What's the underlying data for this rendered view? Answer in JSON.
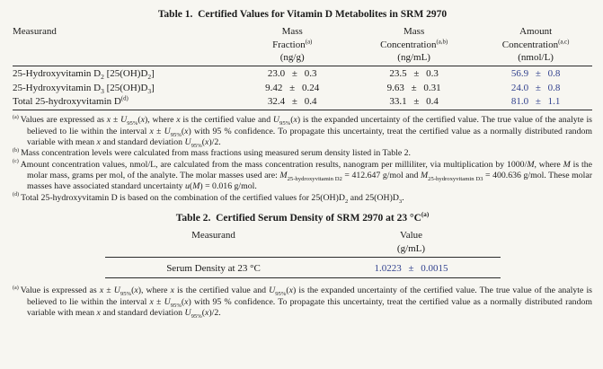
{
  "colors": {
    "background": "#f7f6f1",
    "text": "#1b1b1b",
    "rule": "#2b2b2b",
    "value_accent": "#31418e"
  },
  "table1": {
    "title": "Table 1.  Certified Values for Vitamin D Metabolites in SRM 2970",
    "headers": [
      {
        "lines": [
          [
            {
              "t": "Measurand"
            }
          ]
        ]
      },
      {
        "lines": [
          [
            {
              "t": "Mass"
            }
          ],
          [
            {
              "t": "Fraction"
            },
            {
              "t": "(a)",
              "s": "sup"
            }
          ],
          [
            {
              "t": "(ng/g)"
            }
          ]
        ]
      },
      {
        "lines": [
          [
            {
              "t": "Mass"
            }
          ],
          [
            {
              "t": "Concentration"
            },
            {
              "t": "(a,b)",
              "s": "sup"
            }
          ],
          [
            {
              "t": "(ng/mL)"
            }
          ]
        ]
      },
      {
        "lines": [
          [
            {
              "t": "Amount"
            }
          ],
          [
            {
              "t": "Concentration"
            },
            {
              "t": "(a,c)",
              "s": "sup"
            }
          ],
          [
            {
              "t": "(nmol/L)"
            }
          ]
        ]
      }
    ],
    "rows": [
      {
        "measurand": [
          {
            "t": "25-Hydroxyvitamin D"
          },
          {
            "t": "2",
            "s": "sub"
          },
          {
            "t": " [25(OH)D"
          },
          {
            "t": "2",
            "s": "sub"
          },
          {
            "t": "]"
          }
        ],
        "values": [
          "23.0 ± 0.3",
          "23.5 ± 0.3",
          "56.9 ± 0.8"
        ]
      },
      {
        "measurand": [
          {
            "t": "25-Hydroxyvitamin D"
          },
          {
            "t": "3",
            "s": "sub"
          },
          {
            "t": " [25(OH)D"
          },
          {
            "t": "3",
            "s": "sub"
          },
          {
            "t": "]"
          }
        ],
        "values": [
          "9.42 ± 0.24",
          "9.63 ± 0.31",
          "24.0 ± 0.8"
        ]
      },
      {
        "measurand": [
          {
            "t": "Total 25-hydroxyvitamin D"
          },
          {
            "t": "(d)",
            "s": "sup"
          }
        ],
        "values": [
          "32.4 ± 0.4",
          "33.1 ± 0.4",
          "81.0 ± 1.1"
        ]
      }
    ],
    "footnotes": [
      {
        "marker": "(a)",
        "segments": [
          {
            "t": "Values are expressed as "
          },
          {
            "t": "x",
            "s": "i"
          },
          {
            "t": " ± "
          },
          {
            "t": "U",
            "s": "i"
          },
          {
            "t": "95%",
            "s": "sub"
          },
          {
            "t": "("
          },
          {
            "t": "x",
            "s": "i"
          },
          {
            "t": "), where "
          },
          {
            "t": "x",
            "s": "i"
          },
          {
            "t": " is the certified value and "
          },
          {
            "t": "U",
            "s": "i"
          },
          {
            "t": "95%",
            "s": "sub"
          },
          {
            "t": "("
          },
          {
            "t": "x",
            "s": "i"
          },
          {
            "t": ") is the expanded uncertainty of the certified value.  The true value of the analyte is believed to lie within the interval "
          },
          {
            "t": "x",
            "s": "i"
          },
          {
            "t": " ± "
          },
          {
            "t": "U",
            "s": "i"
          },
          {
            "t": "95%",
            "s": "sub"
          },
          {
            "t": "("
          },
          {
            "t": "x",
            "s": "i"
          },
          {
            "t": ") with 95 % confidence.  To propagate this uncertainty, treat the certified value as a normally distributed random variable with mean "
          },
          {
            "t": "x",
            "s": "i"
          },
          {
            "t": " and standard deviation "
          },
          {
            "t": "U",
            "s": "i"
          },
          {
            "t": "95%",
            "s": "sub"
          },
          {
            "t": "("
          },
          {
            "t": "x",
            "s": "i"
          },
          {
            "t": ")/2."
          }
        ]
      },
      {
        "marker": "(b)",
        "segments": [
          {
            "t": "Mass concentration levels were calculated from mass fractions using measured serum density listed in Table 2."
          }
        ]
      },
      {
        "marker": "(c)",
        "segments": [
          {
            "t": "Amount concentration values, nmol/L, are calculated from the mass concentration results, nanogram per milliliter, via multiplication by 1000/"
          },
          {
            "t": "M",
            "s": "i"
          },
          {
            "t": ", where "
          },
          {
            "t": "M",
            "s": "i"
          },
          {
            "t": " is the molar mass, grams per mol, of the analyte.  The molar masses used are: "
          },
          {
            "t": "M",
            "s": "i"
          },
          {
            "t": "25-hydroxyvitamin D2",
            "s": "sub"
          },
          {
            "t": " = 412.647 g/mol and "
          },
          {
            "t": "M",
            "s": "i"
          },
          {
            "t": "25-hydroxyvitamin D3",
            "s": "sub"
          },
          {
            "t": " = 400.636 g/mol.  These molar masses have associated standard uncertainty "
          },
          {
            "t": "u",
            "s": "i"
          },
          {
            "t": "("
          },
          {
            "t": "M",
            "s": "i"
          },
          {
            "t": ") = 0.016 g/mol."
          }
        ]
      },
      {
        "marker": "(d)",
        "segments": [
          {
            "t": "Total 25-hydroxyvitamin D is based on the combination of the certified values for 25(OH)D"
          },
          {
            "t": "2",
            "s": "sub"
          },
          {
            "t": " and 25(OH)D"
          },
          {
            "t": "3",
            "s": "sub"
          },
          {
            "t": "."
          }
        ]
      }
    ]
  },
  "table2": {
    "title": [
      {
        "t": "Table 2.  Certified Serum Density of SRM 2970 at 23 °C"
      },
      {
        "t": "(a)",
        "s": "sup"
      }
    ],
    "headers": [
      {
        "lines": [
          [
            {
              "t": "Measurand"
            }
          ]
        ]
      },
      {
        "lines": [
          [
            {
              "t": "Value"
            }
          ],
          [
            {
              "t": "(g/mL)"
            }
          ]
        ]
      }
    ],
    "rows": [
      {
        "measurand": "Serum Density at 23 °C",
        "value": "1.0223 ± 0.0015"
      }
    ],
    "footnotes": [
      {
        "marker": "(a)",
        "segments": [
          {
            "t": "Value is expressed as "
          },
          {
            "t": "x",
            "s": "i"
          },
          {
            "t": " ± "
          },
          {
            "t": "U",
            "s": "i"
          },
          {
            "t": "95%",
            "s": "sub"
          },
          {
            "t": "("
          },
          {
            "t": "x",
            "s": "i"
          },
          {
            "t": "), where "
          },
          {
            "t": "x",
            "s": "i"
          },
          {
            "t": " is the certified value and "
          },
          {
            "t": "U",
            "s": "i"
          },
          {
            "t": "95%",
            "s": "sub"
          },
          {
            "t": "("
          },
          {
            "t": "x",
            "s": "i"
          },
          {
            "t": ") is the expanded uncertainty of the certified value.  The true value of the analyte is believed to lie within the interval "
          },
          {
            "t": "x",
            "s": "i"
          },
          {
            "t": " ± "
          },
          {
            "t": "U",
            "s": "i"
          },
          {
            "t": "95%",
            "s": "sub"
          },
          {
            "t": "("
          },
          {
            "t": "x",
            "s": "i"
          },
          {
            "t": ") with 95 % confidence.  To propagate this uncertainty, treat the certified value as a normally distributed random variable with mean "
          },
          {
            "t": "x",
            "s": "i"
          },
          {
            "t": " and standard deviation "
          },
          {
            "t": "U",
            "s": "i"
          },
          {
            "t": "95%",
            "s": "sub"
          },
          {
            "t": "("
          },
          {
            "t": "x",
            "s": "i"
          },
          {
            "t": ")/2."
          }
        ]
      }
    ]
  }
}
